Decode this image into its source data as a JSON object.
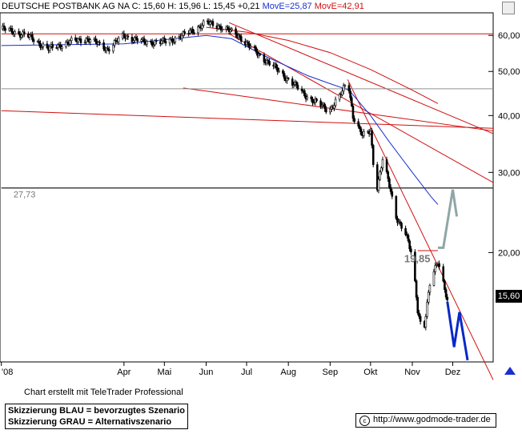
{
  "header": {
    "instrument": "DEUTSCHE POSTBANK AG NA",
    "quote_text": "C: 15,60 H: 15,96 L: 15,45 +0,21",
    "move_blue": "MovE=25,87",
    "move_red": "MovE=42,91"
  },
  "credit": "Chart erstellt mit TeleTrader Professional",
  "legend": {
    "blue": "Skizzierung BLAU = bevorzugtes Szenario",
    "grey": "Skizzierung GRAU = Alternativszenario"
  },
  "url": "http://www.godmode-trader.de",
  "last_price": "15,60",
  "colors": {
    "candles": "#000000",
    "ma_blue": "#1a2fd0",
    "ma_red": "#d01010",
    "trend": "#d01010",
    "support": "#444444",
    "blue_path": "#0a28c8",
    "grey_path": "#8fa6a6"
  },
  "chart_data": {
    "type": "candlestick",
    "y_scale": "log",
    "ylim": [
      11.5,
      67
    ],
    "y_ticks": [
      {
        "v": 20,
        "label": "20,00"
      },
      {
        "v": 30,
        "label": "30,00"
      },
      {
        "v": 40,
        "label": "40,00"
      },
      {
        "v": 50,
        "label": "50,00"
      },
      {
        "v": 60,
        "label": "60,00"
      }
    ],
    "x_ticks": [
      {
        "date": "2008-01-01",
        "label": "'08"
      },
      {
        "date": "2008-04-01",
        "label": "Apr"
      },
      {
        "date": "2008-05-01",
        "label": "Mai"
      },
      {
        "date": "2008-06-01",
        "label": "Jun"
      },
      {
        "date": "2008-07-01",
        "label": "Jul"
      },
      {
        "date": "2008-08-01",
        "label": "Aug"
      },
      {
        "date": "2008-09-01",
        "label": "Sep"
      },
      {
        "date": "2008-10-01",
        "label": "Okt"
      },
      {
        "date": "2008-11-01",
        "label": "Nov"
      },
      {
        "date": "2008-12-01",
        "label": "Dez"
      }
    ],
    "x_range": [
      "2007-12-31",
      "2008-12-31"
    ],
    "close_anchors": [
      [
        "2008-01-02",
        62
      ],
      [
        "2008-01-20",
        60
      ],
      [
        "2008-02-05",
        56
      ],
      [
        "2008-02-20",
        58
      ],
      [
        "2008-03-05",
        59
      ],
      [
        "2008-03-20",
        56
      ],
      [
        "2008-04-01",
        60
      ],
      [
        "2008-04-15",
        58
      ],
      [
        "2008-05-01",
        58
      ],
      [
        "2008-05-15",
        60
      ],
      [
        "2008-06-01",
        64
      ],
      [
        "2008-06-10",
        63
      ],
      [
        "2008-06-25",
        60
      ],
      [
        "2008-07-05",
        56
      ],
      [
        "2008-07-15",
        53
      ],
      [
        "2008-07-25",
        50
      ],
      [
        "2008-08-01",
        48
      ],
      [
        "2008-08-15",
        44
      ],
      [
        "2008-08-31",
        41
      ],
      [
        "2008-09-10",
        45
      ],
      [
        "2008-09-14",
        48
      ],
      [
        "2008-09-18",
        40
      ],
      [
        "2008-09-25",
        36
      ],
      [
        "2008-10-01",
        37
      ],
      [
        "2008-10-05",
        27
      ],
      [
        "2008-10-10",
        32
      ],
      [
        "2008-10-15",
        28
      ],
      [
        "2008-10-20",
        24
      ],
      [
        "2008-10-27",
        22
      ],
      [
        "2008-11-01",
        19.5
      ],
      [
        "2008-11-05",
        15
      ],
      [
        "2008-11-09",
        13.2
      ],
      [
        "2008-11-14",
        17
      ],
      [
        "2008-11-20",
        19.2
      ],
      [
        "2008-11-25",
        16.8
      ],
      [
        "2008-11-27",
        15.6
      ]
    ],
    "ma_blue": [
      [
        "2008-01-01",
        57
      ],
      [
        "2008-04-01",
        57.5
      ],
      [
        "2008-06-01",
        60
      ],
      [
        "2008-06-20",
        59
      ],
      [
        "2008-07-15",
        54
      ],
      [
        "2008-08-15",
        49
      ],
      [
        "2008-09-01",
        47
      ],
      [
        "2008-09-15",
        45.5
      ],
      [
        "2008-10-01",
        40
      ],
      [
        "2008-10-15",
        35
      ],
      [
        "2008-11-01",
        30
      ],
      [
        "2008-11-15",
        26.5
      ],
      [
        "2008-11-20",
        25.5
      ]
    ],
    "ma_red": [
      [
        "2008-06-01",
        62.5
      ],
      [
        "2008-07-01",
        61
      ],
      [
        "2008-08-01",
        58.5
      ],
      [
        "2008-09-01",
        55
      ],
      [
        "2008-10-01",
        50.5
      ],
      [
        "2008-11-01",
        45.5
      ],
      [
        "2008-11-20",
        42.5
      ]
    ],
    "lines": [
      {
        "style": "red",
        "from": [
          "2008-01-01",
          60.5
        ],
        "to": [
          "2008-12-31",
          60.5
        ]
      },
      {
        "style": "red",
        "from": [
          "2008-06-18",
          64
        ],
        "to": [
          "2008-12-31",
          36.5
        ]
      },
      {
        "style": "red",
        "from": [
          "2008-06-18",
          60.5
        ],
        "to": [
          "2008-12-31",
          28.5
        ]
      },
      {
        "style": "red",
        "from": [
          "2008-05-15",
          46
        ],
        "to": [
          "2008-12-31",
          37
        ]
      },
      {
        "style": "red",
        "from": [
          "2008-01-01",
          41
        ],
        "to": [
          "2008-12-31",
          37.5
        ]
      },
      {
        "style": "red",
        "from": [
          "2008-09-14",
          48
        ],
        "to": [
          "2008-12-31",
          10.5
        ]
      },
      {
        "style": "grey",
        "from": [
          "2008-01-01",
          45.8
        ],
        "to": [
          "2008-12-31",
          45.8
        ]
      },
      {
        "style": "support",
        "from": [
          "2008-01-01",
          27.73
        ],
        "to": [
          "2008-12-31",
          27.73
        ]
      },
      {
        "style": "red",
        "from": [
          "2008-11-05",
          20.2
        ],
        "to": [
          "2008-11-20",
          20.2
        ]
      }
    ],
    "labels": [
      {
        "text": "27,73",
        "at": [
          "2008-01-10",
          27.73
        ],
        "bold": false
      },
      {
        "text": "19,85",
        "at": [
          "2008-10-26",
          19.85
        ],
        "bold": true
      }
    ],
    "blue_path": [
      [
        "2008-11-27",
        15.6
      ],
      [
        "2008-12-02",
        12.4
      ],
      [
        "2008-12-06",
        14.8
      ],
      [
        "2008-12-12",
        11.6
      ]
    ],
    "grey_path": [
      [
        "2008-11-20",
        20.5
      ],
      [
        "2008-11-24",
        20.5
      ],
      [
        "2008-12-01",
        27.5
      ],
      [
        "2008-12-04",
        24.0
      ]
    ]
  }
}
